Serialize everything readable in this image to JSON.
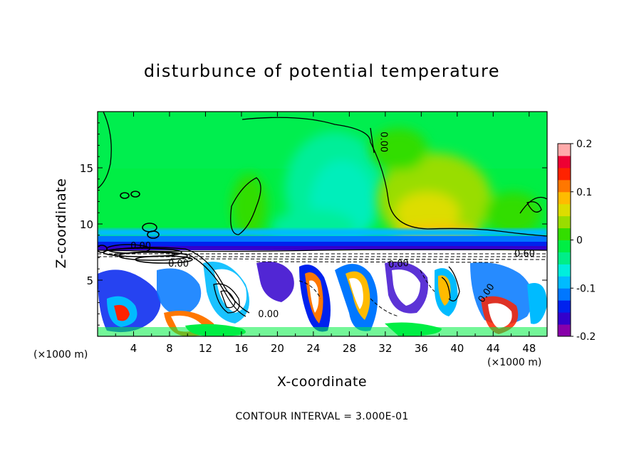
{
  "chart_data": {
    "type": "heatmap",
    "title": "disturbunce of potential temperature",
    "xlabel": "X-coordinate",
    "ylabel": "Z-coordinate",
    "x_unit": "(×1000 m)",
    "y_unit": "(×1000 m)",
    "xlim": [
      0,
      50
    ],
    "ylim": [
      0,
      20
    ],
    "x_ticks": [
      4,
      8,
      12,
      16,
      20,
      24,
      28,
      32,
      36,
      40,
      44,
      48
    ],
    "y_ticks": [
      5,
      10,
      15
    ],
    "colorbar": {
      "range": [
        -0.2,
        0.2
      ],
      "labels": [
        "0.2",
        "0.1",
        "0",
        "-0.1",
        "-0.2"
      ],
      "label_values": [
        0.2,
        0.1,
        0,
        -0.1,
        -0.2
      ],
      "colors": [
        "#8800aa",
        "#3300cc",
        "#0022ee",
        "#0077ff",
        "#00bbff",
        "#00eedd",
        "#00ee88",
        "#00ee44",
        "#33dd00",
        "#99dd00",
        "#dddd00",
        "#ffbb00",
        "#ff7700",
        "#ff2200",
        "#ee0033",
        "#ffaaaa"
      ]
    },
    "contour_labels": [
      {
        "text": "0.00",
        "x": 31.5,
        "z": 17.3,
        "angle": 90
      },
      {
        "text": "0.00",
        "x": 4.8,
        "z": 7.8,
        "angle": 0
      },
      {
        "text": "0.00",
        "x": 9.0,
        "z": 6.2,
        "angle": 0
      },
      {
        "text": "0.00",
        "x": 19.0,
        "z": 1.7,
        "angle": 0
      },
      {
        "text": "0.00",
        "x": 33.5,
        "z": 6.2,
        "angle": -5
      },
      {
        "text": "0.00",
        "x": 43.5,
        "z": 3.7,
        "angle": -55
      },
      {
        "text": "0.60",
        "x": 47.5,
        "z": 7.1,
        "angle": 0
      }
    ],
    "contour_interval": "CONTOUR INTERVAL = 3.000E-01"
  }
}
